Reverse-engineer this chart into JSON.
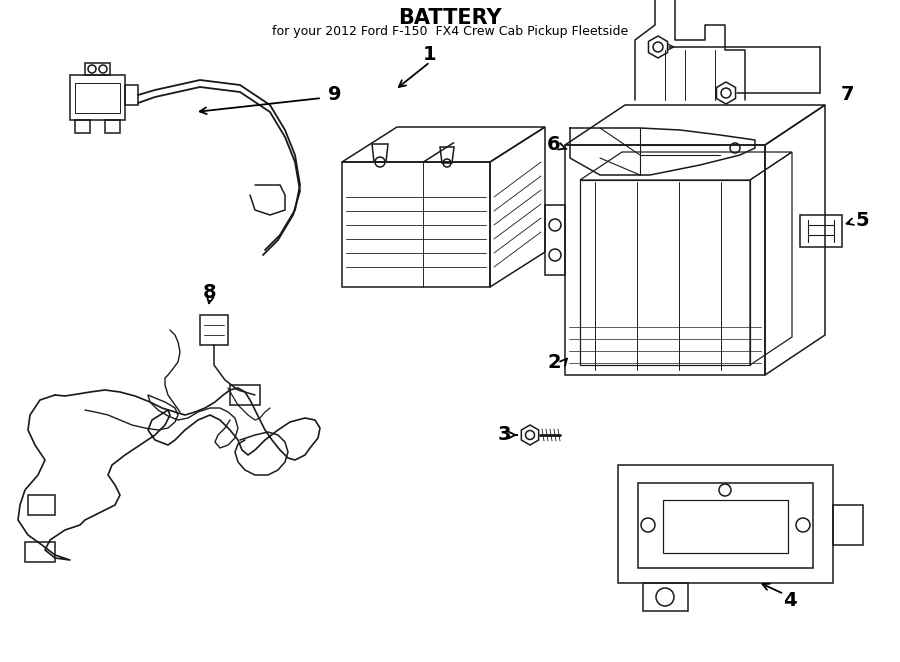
{
  "title": "BATTERY",
  "subtitle": "for your 2012 Ford F-150  FX4 Crew Cab Pickup Fleetside",
  "bg_color": "#ffffff",
  "line_color": "#1a1a1a",
  "lw": 1.1,
  "fig_w": 9.0,
  "fig_h": 6.62,
  "dpi": 100
}
